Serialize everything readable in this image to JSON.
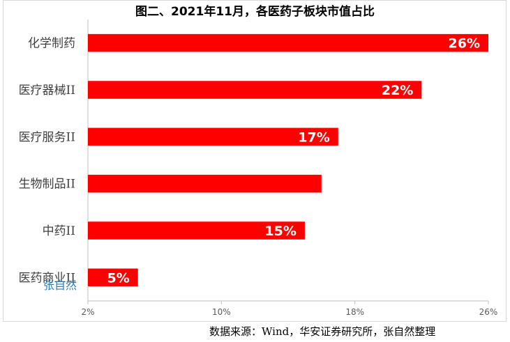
{
  "chart_data": {
    "type": "bar",
    "orientation": "horizontal",
    "title": "图二、2021年11月，各医药子板块市值占比",
    "categories": [
      "化学制药",
      "医疗器械II",
      "医疗服务II",
      "生物制品II",
      "中药II",
      "医药商业II"
    ],
    "values": [
      26,
      22,
      17,
      16,
      15,
      5
    ],
    "data_labels": [
      "26%",
      "22%",
      "17%",
      "",
      "15%",
      "5%"
    ],
    "xlim": [
      2,
      26
    ],
    "x_ticks": [
      "2%",
      "10%",
      "18%",
      "26%"
    ],
    "x_tick_values": [
      2,
      10,
      18,
      26
    ],
    "bar_color": "#ff0000",
    "grid": false
  },
  "source_note": "数据来源：Wind，华安证券研究所，张自然整理",
  "watermark": "张自然"
}
